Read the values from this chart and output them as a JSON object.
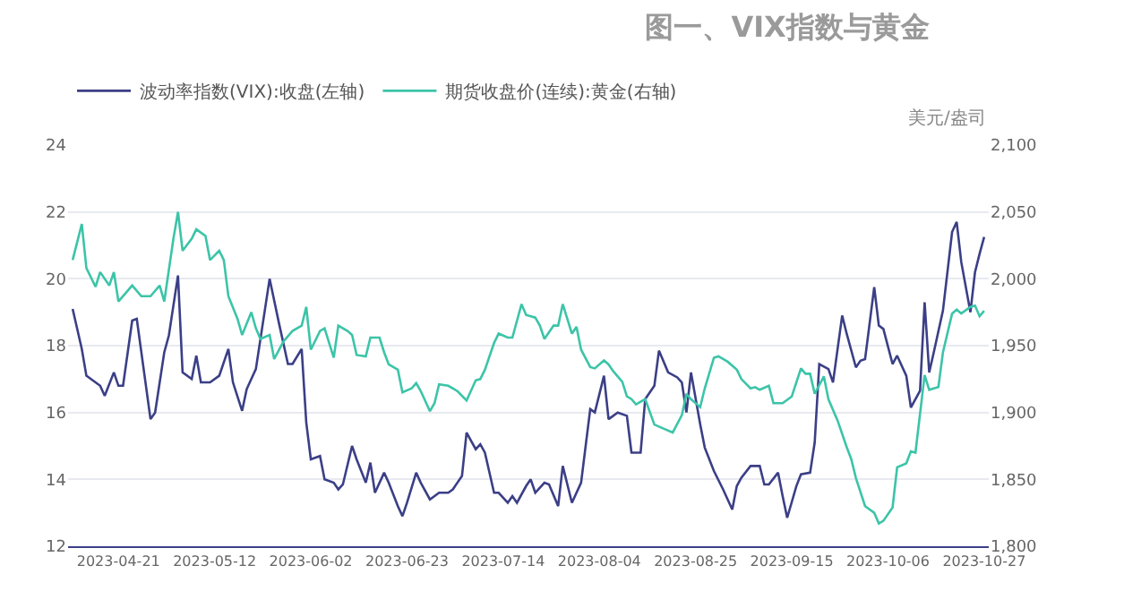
{
  "chart_data": {
    "type": "line",
    "title": "图一、VIX指数与黄金",
    "y2label": "美元/盎司",
    "xlim": [
      "2023-04-10",
      "2023-10-28"
    ],
    "xticks": [
      "2023-04-21",
      "2023-05-12",
      "2023-06-02",
      "2023-06-23",
      "2023-07-14",
      "2023-08-04",
      "2023-08-25",
      "2023-09-15",
      "2023-10-06",
      "2023-10-27"
    ],
    "ylim": [
      12,
      24
    ],
    "yticks": [
      12,
      14,
      16,
      18,
      20,
      22,
      24
    ],
    "y2lim": [
      1800,
      2100
    ],
    "y2ticks": [
      {
        "value": 1800,
        "label": "1,800"
      },
      {
        "value": 1850,
        "label": "1,850"
      },
      {
        "value": 1900,
        "label": "1,900"
      },
      {
        "value": 1950,
        "label": "1,950"
      },
      {
        "value": 2000,
        "label": "2,000"
      },
      {
        "value": 2050,
        "label": "2,050"
      },
      {
        "value": 2100,
        "label": "2,100"
      }
    ],
    "grid": "y",
    "legend": "top left",
    "marker": "none",
    "line_style": "solid",
    "series": [
      {
        "name": "波动率指数(VIX):收盘(左轴)",
        "color": "#3b3f86",
        "x": [
          "2023-04-11",
          "2023-04-13",
          "2023-04-14",
          "2023-04-17",
          "2023-04-18",
          "2023-04-20",
          "2023-04-21",
          "2023-04-22",
          "2023-04-24",
          "2023-04-25",
          "2023-04-28",
          "2023-04-29",
          "2023-05-01",
          "2023-05-02",
          "2023-05-04",
          "2023-05-05",
          "2023-05-07",
          "2023-05-08",
          "2023-05-09",
          "2023-05-11",
          "2023-05-13",
          "2023-05-15",
          "2023-05-16",
          "2023-05-18",
          "2023-05-19",
          "2023-05-21",
          "2023-05-24",
          "2023-05-26",
          "2023-05-28",
          "2023-05-29",
          "2023-05-31",
          "2023-06-01",
          "2023-06-02",
          "2023-06-04",
          "2023-06-05",
          "2023-06-07",
          "2023-06-08",
          "2023-06-09",
          "2023-06-11",
          "2023-06-12",
          "2023-06-14",
          "2023-06-15",
          "2023-06-16",
          "2023-06-18",
          "2023-06-19",
          "2023-06-21",
          "2023-06-22",
          "2023-06-23",
          "2023-06-25",
          "2023-06-26",
          "2023-06-28",
          "2023-06-30",
          "2023-07-02",
          "2023-07-03",
          "2023-07-05",
          "2023-07-06",
          "2023-07-08",
          "2023-07-09",
          "2023-07-10",
          "2023-07-12",
          "2023-07-13",
          "2023-07-15",
          "2023-07-16",
          "2023-07-17",
          "2023-07-19",
          "2023-07-20",
          "2023-07-21",
          "2023-07-23",
          "2023-07-24",
          "2023-07-26",
          "2023-07-27",
          "2023-07-29",
          "2023-07-31",
          "2023-08-02",
          "2023-08-03",
          "2023-08-05",
          "2023-08-06",
          "2023-08-08",
          "2023-08-10",
          "2023-08-11",
          "2023-08-13",
          "2023-08-14",
          "2023-08-16",
          "2023-08-17",
          "2023-08-19",
          "2023-08-21",
          "2023-08-22",
          "2023-08-23",
          "2023-08-24",
          "2023-08-26",
          "2023-08-27",
          "2023-08-29",
          "2023-08-31",
          "2023-09-02",
          "2023-09-03",
          "2023-09-04",
          "2023-09-06",
          "2023-09-08",
          "2023-09-09",
          "2023-09-10",
          "2023-09-12",
          "2023-09-13",
          "2023-09-14",
          "2023-09-16",
          "2023-09-17",
          "2023-09-19",
          "2023-09-20",
          "2023-09-21",
          "2023-09-23",
          "2023-09-24",
          "2023-09-26",
          "2023-09-27",
          "2023-09-29",
          "2023-09-30",
          "2023-10-01",
          "2023-10-03",
          "2023-10-04",
          "2023-10-05",
          "2023-10-07",
          "2023-10-08",
          "2023-10-10",
          "2023-10-11",
          "2023-10-13",
          "2023-10-14",
          "2023-10-15",
          "2023-10-16",
          "2023-10-18",
          "2023-10-20",
          "2023-10-21",
          "2023-10-22",
          "2023-10-24",
          "2023-10-25",
          "2023-10-26",
          "2023-10-27"
        ],
        "values": [
          19.1,
          17.9,
          17.1,
          16.8,
          16.5,
          17.2,
          16.8,
          16.8,
          18.75,
          18.8,
          15.8,
          16.0,
          17.8,
          18.3,
          20.1,
          17.2,
          17.0,
          17.7,
          16.9,
          16.9,
          17.1,
          17.9,
          16.9,
          16.05,
          16.7,
          17.3,
          20.0,
          18.7,
          17.45,
          17.45,
          17.9,
          15.7,
          14.6,
          14.7,
          14.0,
          13.9,
          13.7,
          13.85,
          15.0,
          14.6,
          13.9,
          14.5,
          13.6,
          14.2,
          13.9,
          13.2,
          12.9,
          13.3,
          14.2,
          13.9,
          13.4,
          13.6,
          13.6,
          13.7,
          14.1,
          15.4,
          14.9,
          15.05,
          14.8,
          13.6,
          13.6,
          13.3,
          13.5,
          13.3,
          13.8,
          14.0,
          13.6,
          13.9,
          13.85,
          13.2,
          14.4,
          13.3,
          13.9,
          16.1,
          16.0,
          17.1,
          15.8,
          16.0,
          15.9,
          14.8,
          14.8,
          16.4,
          16.8,
          17.85,
          17.2,
          17.05,
          16.9,
          16.0,
          17.2,
          15.65,
          14.95,
          14.25,
          13.7,
          13.1,
          13.8,
          14.05,
          14.4,
          14.4,
          13.85,
          13.85,
          14.2,
          13.5,
          12.85,
          13.8,
          14.15,
          14.2,
          15.1,
          17.45,
          17.3,
          16.9,
          18.9,
          18.35,
          17.35,
          17.55,
          17.6,
          19.75,
          18.6,
          18.5,
          17.45,
          17.7,
          17.1,
          16.15,
          16.65,
          19.3,
          17.2,
          17.8,
          19.05,
          21.4,
          21.7,
          20.5,
          19.0,
          20.2,
          20.75,
          21.25
        ]
      },
      {
        "name": "期货收盘价(连续):黄金(右轴)",
        "color": "#3cc4a8",
        "axis": "y2",
        "x": [
          "2023-04-11",
          "2023-04-13",
          "2023-04-14",
          "2023-04-16",
          "2023-04-17",
          "2023-04-19",
          "2023-04-20",
          "2023-04-21",
          "2023-04-24",
          "2023-04-26",
          "2023-04-28",
          "2023-04-30",
          "2023-05-01",
          "2023-05-03",
          "2023-05-04",
          "2023-05-05",
          "2023-05-07",
          "2023-05-08",
          "2023-05-10",
          "2023-05-11",
          "2023-05-13",
          "2023-05-14",
          "2023-05-15",
          "2023-05-17",
          "2023-05-18",
          "2023-05-20",
          "2023-05-21",
          "2023-05-22",
          "2023-05-24",
          "2023-05-25",
          "2023-05-27",
          "2023-05-29",
          "2023-05-31",
          "2023-06-01",
          "2023-06-02",
          "2023-06-04",
          "2023-06-05",
          "2023-06-07",
          "2023-06-08",
          "2023-06-10",
          "2023-06-11",
          "2023-06-12",
          "2023-06-14",
          "2023-06-15",
          "2023-06-17",
          "2023-06-18",
          "2023-06-19",
          "2023-06-21",
          "2023-06-22",
          "2023-06-24",
          "2023-06-25",
          "2023-06-26",
          "2023-06-28",
          "2023-06-29",
          "2023-06-30",
          "2023-07-02",
          "2023-07-04",
          "2023-07-06",
          "2023-07-08",
          "2023-07-09",
          "2023-07-10",
          "2023-07-12",
          "2023-07-13",
          "2023-07-15",
          "2023-07-16",
          "2023-07-18",
          "2023-07-19",
          "2023-07-21",
          "2023-07-22",
          "2023-07-23",
          "2023-07-25",
          "2023-07-26",
          "2023-07-27",
          "2023-07-29",
          "2023-07-30",
          "2023-07-31",
          "2023-08-02",
          "2023-08-03",
          "2023-08-05",
          "2023-08-06",
          "2023-08-07",
          "2023-08-09",
          "2023-08-10",
          "2023-08-11",
          "2023-08-12",
          "2023-08-14",
          "2023-08-16",
          "2023-08-18",
          "2023-08-20",
          "2023-08-22",
          "2023-08-23",
          "2023-08-24",
          "2023-08-26",
          "2023-08-27",
          "2023-08-29",
          "2023-08-30",
          "2023-09-01",
          "2023-09-03",
          "2023-09-04",
          "2023-09-06",
          "2023-09-07",
          "2023-09-08",
          "2023-09-10",
          "2023-09-11",
          "2023-09-13",
          "2023-09-15",
          "2023-09-17",
          "2023-09-18",
          "2023-09-19",
          "2023-09-20",
          "2023-09-22",
          "2023-09-23",
          "2023-09-25",
          "2023-09-27",
          "2023-09-28",
          "2023-09-29",
          "2023-10-01",
          "2023-10-03",
          "2023-10-04",
          "2023-10-05",
          "2023-10-07",
          "2023-10-08",
          "2023-10-10",
          "2023-10-11",
          "2023-10-12",
          "2023-10-14",
          "2023-10-15",
          "2023-10-17",
          "2023-10-18",
          "2023-10-20",
          "2023-10-21",
          "2023-10-22",
          "2023-10-24",
          "2023-10-25",
          "2023-10-26",
          "2023-10-27"
        ],
        "values": [
          2014,
          2041,
          2008,
          1994,
          2005,
          1995,
          2005,
          1983,
          1995,
          1987,
          1987,
          1995,
          1983,
          2030,
          2050,
          2021,
          2030,
          2037,
          2032,
          2014,
          2021,
          2014,
          1987,
          1970,
          1958,
          1975,
          1963,
          1955,
          1958,
          1940,
          1953,
          1961,
          1965,
          1979,
          1947,
          1961,
          1963,
          1941,
          1965,
          1961,
          1958,
          1943,
          1942,
          1956,
          1956,
          1945,
          1936,
          1932,
          1915,
          1918,
          1922,
          1916,
          1901,
          1907,
          1921,
          1920,
          1916,
          1909,
          1924,
          1925,
          1932,
          1952,
          1959,
          1956,
          1956,
          1981,
          1973,
          1971,
          1965,
          1955,
          1965,
          1965,
          1981,
          1959,
          1964,
          1947,
          1934,
          1933,
          1939,
          1936,
          1931,
          1923,
          1912,
          1910,
          1906,
          1910,
          1891,
          1888,
          1885,
          1898,
          1914,
          1910,
          1904,
          1918,
          1941,
          1942,
          1938,
          1932,
          1925,
          1918,
          1919,
          1917,
          1920,
          1907,
          1907,
          1912,
          1933,
          1929,
          1929,
          1914,
          1927,
          1910,
          1894,
          1874,
          1865,
          1851,
          1830,
          1825,
          1817,
          1819,
          1829,
          1859,
          1862,
          1871,
          1870,
          1928,
          1917,
          1919,
          1945,
          1974,
          1977,
          1974,
          1979,
          1980,
          1972,
          1976
        ]
      }
    ]
  }
}
